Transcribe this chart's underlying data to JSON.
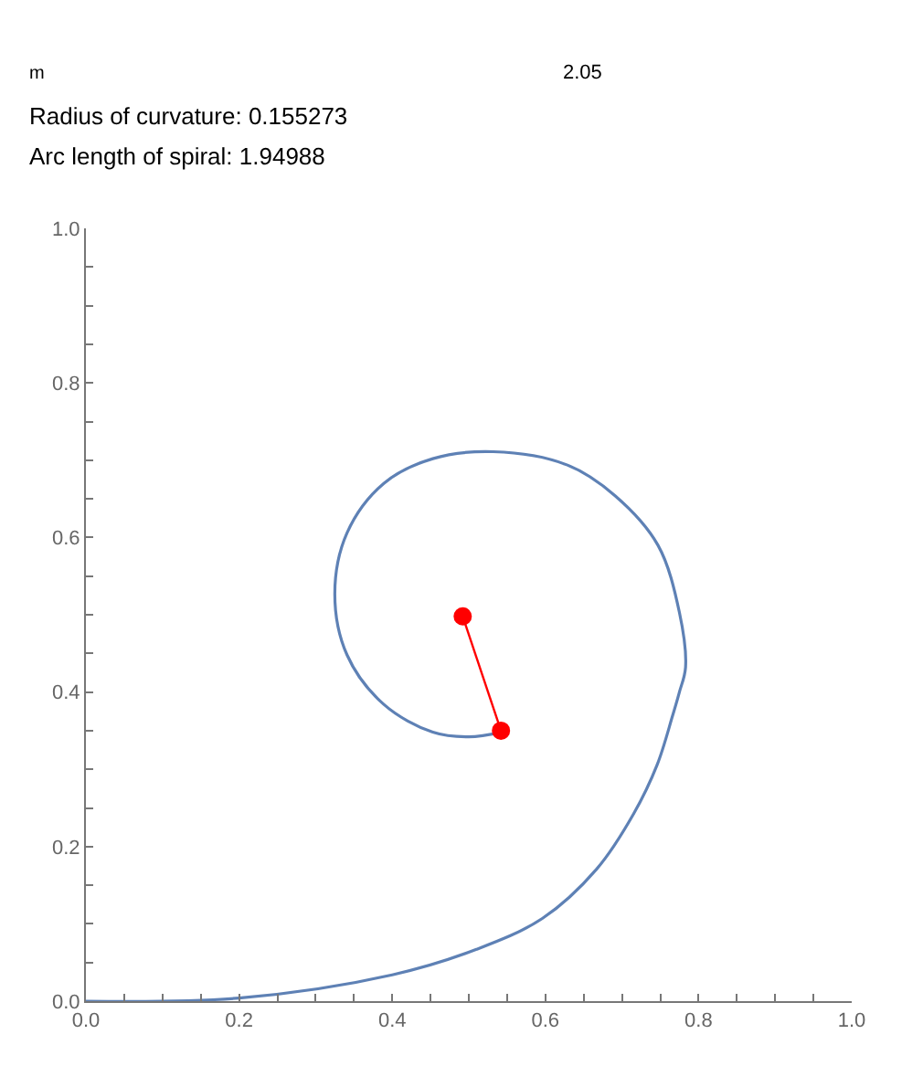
{
  "chart_data": {
    "type": "line",
    "annotations": [
      "m",
      "2.05",
      "Radius of curvature: 0.155273",
      "Arc length of spiral: 1.94988"
    ],
    "series": [
      {
        "color": "#5e81b5",
        "marker": "none",
        "x": [
          0,
          0.2,
          0.4,
          0.51,
          0.596,
          0.667,
          0.715,
          0.746,
          0.766,
          0.775,
          0.783,
          0.775,
          0.747,
          0.691,
          0.628,
          0.532,
          0.453,
          0.389,
          0.341,
          0.325,
          0.341,
          0.389,
          0.453,
          0.5,
          0.543
        ],
        "values": [
          0,
          0.004,
          0.034,
          0.067,
          0.107,
          0.171,
          0.242,
          0.306,
          0.369,
          0.4,
          0.432,
          0.503,
          0.59,
          0.654,
          0.694,
          0.711,
          0.702,
          0.67,
          0.606,
          0.527,
          0.448,
          0.384,
          0.348,
          0.342,
          0.348
        ]
      },
      {
        "color": "#ff0000",
        "marker": "circle",
        "x": [
          0.492,
          0.542
        ],
        "values": [
          0.498,
          0.35
        ]
      }
    ],
    "xlim": [
      0,
      1
    ],
    "ylim": [
      0,
      1
    ],
    "xticks": [
      {
        "value": 0,
        "label": "0.0"
      },
      {
        "value": 0.05,
        "label": null
      },
      {
        "value": 0.1,
        "label": null
      },
      {
        "value": 0.15,
        "label": null
      },
      {
        "value": 0.2,
        "label": "0.2"
      },
      {
        "value": 0.25,
        "label": null
      },
      {
        "value": 0.3,
        "label": null
      },
      {
        "value": 0.35,
        "label": null
      },
      {
        "value": 0.4,
        "label": "0.4"
      },
      {
        "value": 0.45,
        "label": null
      },
      {
        "value": 0.5,
        "label": null
      },
      {
        "value": 0.55,
        "label": null
      },
      {
        "value": 0.6,
        "label": "0.6"
      },
      {
        "value": 0.65,
        "label": null
      },
      {
        "value": 0.7,
        "label": null
      },
      {
        "value": 0.75,
        "label": null
      },
      {
        "value": 0.8,
        "label": "0.8"
      },
      {
        "value": 0.85,
        "label": null
      },
      {
        "value": 0.9,
        "label": null
      },
      {
        "value": 0.95,
        "label": null
      },
      {
        "value": 1,
        "label": "1.0"
      }
    ],
    "yticks": [
      {
        "value": 0,
        "label": "0.0"
      },
      {
        "value": 0.05,
        "label": null
      },
      {
        "value": 0.1,
        "label": null
      },
      {
        "value": 0.15,
        "label": null
      },
      {
        "value": 0.2,
        "label": "0.2"
      },
      {
        "value": 0.25,
        "label": null
      },
      {
        "value": 0.3,
        "label": null
      },
      {
        "value": 0.35,
        "label": null
      },
      {
        "value": 0.4,
        "label": "0.4"
      },
      {
        "value": 0.45,
        "label": null
      },
      {
        "value": 0.5,
        "label": null
      },
      {
        "value": 0.55,
        "label": null
      },
      {
        "value": 0.6,
        "label": "0.6"
      },
      {
        "value": 0.65,
        "label": null
      },
      {
        "value": 0.7,
        "label": null
      },
      {
        "value": 0.75,
        "label": null
      },
      {
        "value": 0.8,
        "label": "0.8"
      },
      {
        "value": 0.85,
        "label": null
      },
      {
        "value": 0.9,
        "label": null
      },
      {
        "value": 0.95,
        "label": null
      },
      {
        "value": 1,
        "label": "1.0"
      }
    ],
    "grid": false
  }
}
